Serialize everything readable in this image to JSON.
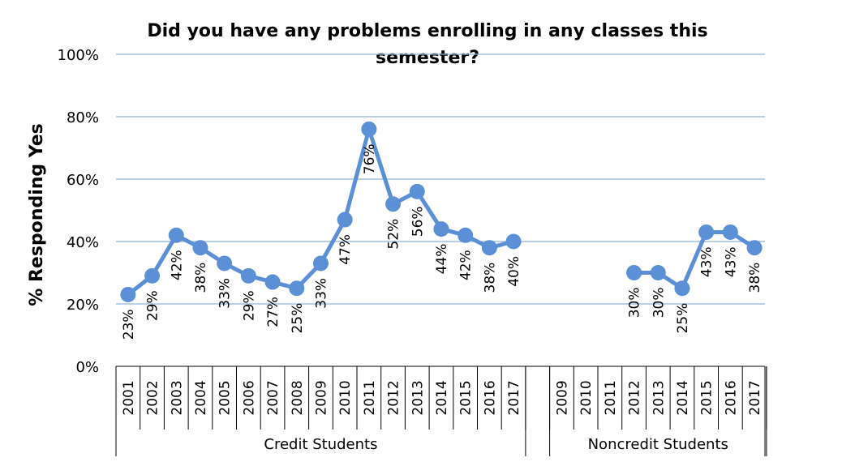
{
  "chart_data": {
    "type": "line",
    "title": "Did you have any problems enrolling in any classes this semester?",
    "title_lines": [
      "Did you have any problems enrolling in any classes this",
      "semester?"
    ],
    "ylabel": "% Responding Yes",
    "ylim": [
      0,
      100
    ],
    "yticks": [
      "0%",
      "20%",
      "40%",
      "60%",
      "80%",
      "100%"
    ],
    "grid": true,
    "line_color": "#5b8fd6",
    "groups": [
      {
        "name": "Credit Students",
        "categories": [
          "2001",
          "2002",
          "2003",
          "2004",
          "2005",
          "2006",
          "2007",
          "2008",
          "2009",
          "2010",
          "2011",
          "2012",
          "2013",
          "2014",
          "2015",
          "2016",
          "2017"
        ],
        "values": [
          23,
          29,
          42,
          38,
          33,
          29,
          27,
          25,
          33,
          47,
          76,
          52,
          56,
          44,
          42,
          38,
          40
        ],
        "labels": [
          "23%",
          "29%",
          "42%",
          "38%",
          "33%",
          "29%",
          "27%",
          "25%",
          "33%",
          "47%",
          "76%",
          "52%",
          "56%",
          "44%",
          "42%",
          "38%",
          "40%"
        ]
      },
      {
        "name": "Noncredit Students",
        "categories": [
          "2009",
          "2010",
          "2011",
          "2012",
          "2013",
          "2014",
          "2015",
          "2016",
          "2017"
        ],
        "values": [
          null,
          null,
          null,
          30,
          30,
          25,
          43,
          43,
          38
        ],
        "labels": [
          null,
          null,
          null,
          "30%",
          "30%",
          "25%",
          "43%",
          "43%",
          "38%"
        ]
      }
    ]
  }
}
